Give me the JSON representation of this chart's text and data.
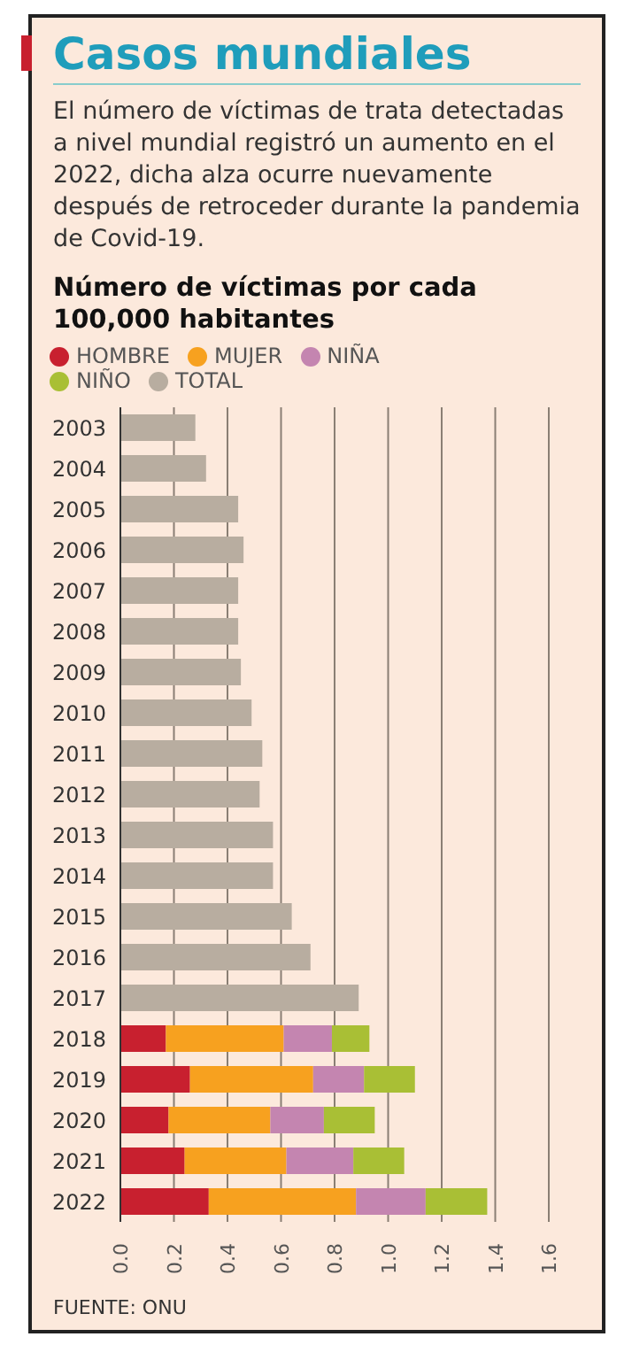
{
  "chart_data": {
    "type": "bar",
    "orientation": "horizontal",
    "stacked": true,
    "title": "Casos mundiales",
    "subtitle": "El número de víctimas de trata detectadas a nivel mundial registró un aumento en el 2022, dicha alza ocurre nuevamente después de retroceder durante la pandemia de Covid-19.",
    "annotations": [
      "Número de víctimas por cada 100,000 habitantes",
      "FUENTE: ONU"
    ],
    "categories": [
      "2003",
      "2004",
      "2005",
      "2006",
      "2007",
      "2008",
      "2009",
      "2010",
      "2011",
      "2012",
      "2013",
      "2014",
      "2015",
      "2016",
      "2017",
      "2018",
      "2019",
      "2020",
      "2021",
      "2022"
    ],
    "series": [
      {
        "name": "TOTAL",
        "color": "#b8ada0",
        "values": [
          0.28,
          0.32,
          0.44,
          0.46,
          0.44,
          0.44,
          0.45,
          0.49,
          0.53,
          0.52,
          0.57,
          0.57,
          0.64,
          0.71,
          0.89,
          null,
          null,
          null,
          null,
          null
        ]
      },
      {
        "name": "HOMBRE",
        "color": "#c8202f",
        "values": [
          null,
          null,
          null,
          null,
          null,
          null,
          null,
          null,
          null,
          null,
          null,
          null,
          null,
          null,
          null,
          0.17,
          0.26,
          0.18,
          0.24,
          0.33
        ]
      },
      {
        "name": "MUJER",
        "color": "#f7a11f",
        "values": [
          null,
          null,
          null,
          null,
          null,
          null,
          null,
          null,
          null,
          null,
          null,
          null,
          null,
          null,
          null,
          0.44,
          0.46,
          0.38,
          0.38,
          0.55
        ]
      },
      {
        "name": "NIÑA",
        "color": "#c485b0",
        "values": [
          null,
          null,
          null,
          null,
          null,
          null,
          null,
          null,
          null,
          null,
          null,
          null,
          null,
          null,
          null,
          0.18,
          0.19,
          0.2,
          0.25,
          0.26
        ]
      },
      {
        "name": "NIÑO",
        "color": "#a9bf35",
        "values": [
          null,
          null,
          null,
          null,
          null,
          null,
          null,
          null,
          null,
          null,
          null,
          null,
          null,
          null,
          null,
          0.14,
          0.19,
          0.19,
          0.19,
          0.23
        ]
      }
    ],
    "xlim": [
      0,
      1.6
    ],
    "xticks": [
      "0.0",
      0.2,
      0.4,
      0.6,
      0.8,
      "1.0",
      1.2,
      1.4,
      1.6
    ],
    "grid": "x",
    "legend": "top"
  }
}
